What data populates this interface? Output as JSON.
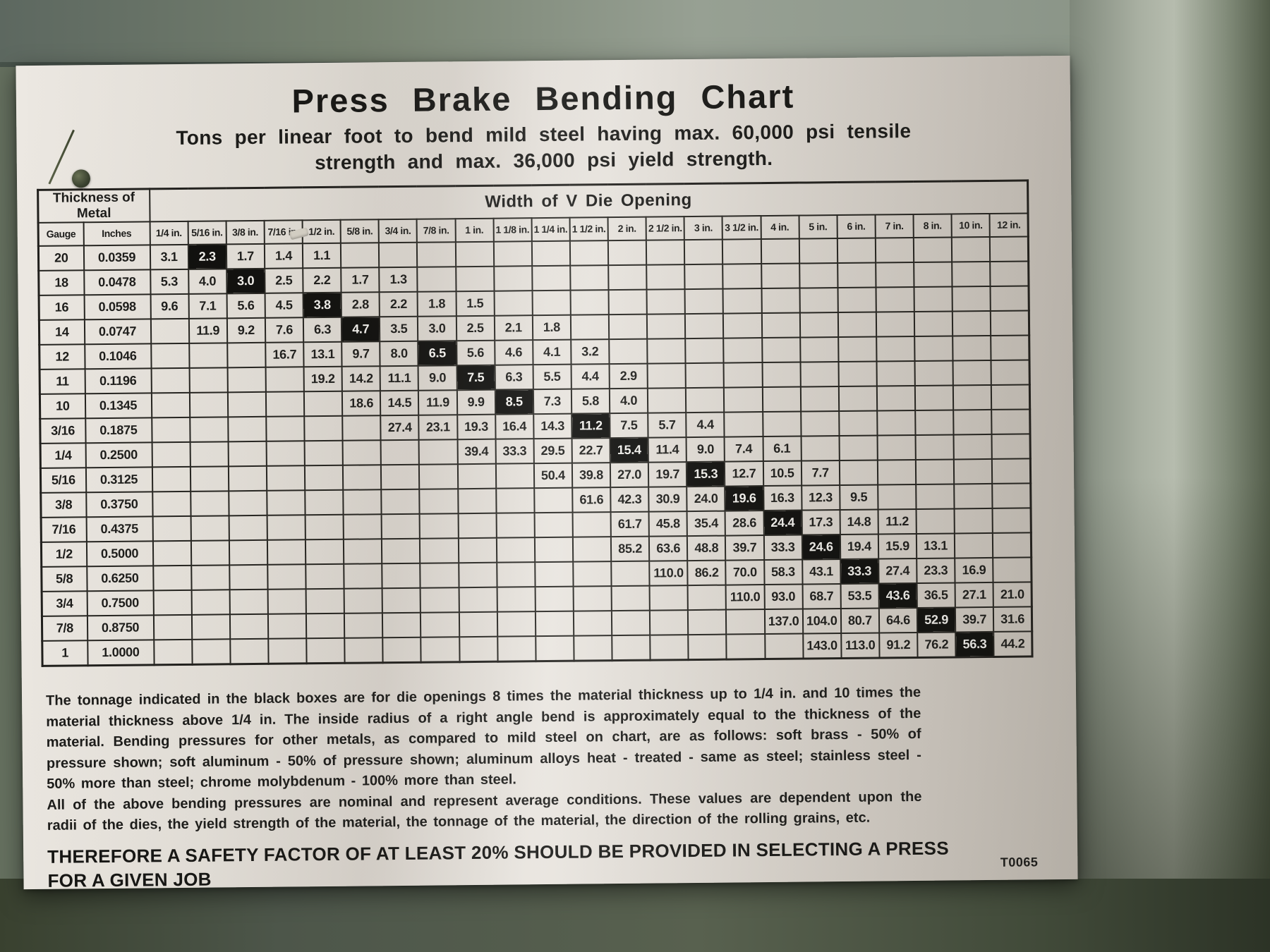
{
  "header": {
    "title": "Press Brake Bending Chart",
    "subtitle_line1": "Tons per linear foot to bend mild steel having max. 60,000 psi tensile",
    "subtitle_line2": "strength and max. 36,000 psi yield strength."
  },
  "chart_data": {
    "type": "table",
    "corner_header": "Thickness of Metal",
    "span_header": "Width of V Die Opening",
    "col1_header": "Gauge",
    "col2_header": "Inches",
    "die_opening_columns": [
      "1/4 in.",
      "5/16 in.",
      "3/8 in.",
      "7/16 in.",
      "1/2 in.",
      "5/8 in.",
      "3/4 in.",
      "7/8 in.",
      "1 in.",
      "1 1/8 in.",
      "1 1/4 in.",
      "1 1/2 in.",
      "2 in.",
      "2 1/2 in.",
      "3 in.",
      "3 1/2 in.",
      "4 in.",
      "5 in.",
      "6 in.",
      "7 in.",
      "8 in.",
      "10 in.",
      "12 in."
    ],
    "black_box_note": "black boxes mark die opening of 8x thickness up to 1/4 in. and 10x above 1/4 in.",
    "rows": [
      {
        "gauge": "20",
        "inches": "0.0359",
        "black_col": 1,
        "values": [
          "3.1",
          "2.3",
          "1.7",
          "1.4",
          "1.1",
          "",
          "",
          "",
          "",
          "",
          "",
          "",
          "",
          "",
          "",
          "",
          "",
          "",
          "",
          "",
          "",
          "",
          ""
        ]
      },
      {
        "gauge": "18",
        "inches": "0.0478",
        "black_col": 2,
        "values": [
          "5.3",
          "4.0",
          "3.0",
          "2.5",
          "2.2",
          "1.7",
          "1.3",
          "",
          "",
          "",
          "",
          "",
          "",
          "",
          "",
          "",
          "",
          "",
          "",
          "",
          "",
          "",
          ""
        ]
      },
      {
        "gauge": "16",
        "inches": "0.0598",
        "black_col": 4,
        "values": [
          "9.6",
          "7.1",
          "5.6",
          "4.5",
          "3.8",
          "2.8",
          "2.2",
          "1.8",
          "1.5",
          "",
          "",
          "",
          "",
          "",
          "",
          "",
          "",
          "",
          "",
          "",
          "",
          "",
          ""
        ]
      },
      {
        "gauge": "14",
        "inches": "0.0747",
        "black_col": 5,
        "values": [
          "",
          "11.9",
          "9.2",
          "7.6",
          "6.3",
          "4.7",
          "3.5",
          "3.0",
          "2.5",
          "2.1",
          "1.8",
          "",
          "",
          "",
          "",
          "",
          "",
          "",
          "",
          "",
          "",
          "",
          ""
        ]
      },
      {
        "gauge": "12",
        "inches": "0.1046",
        "black_col": 7,
        "values": [
          "",
          "",
          "",
          "16.7",
          "13.1",
          "9.7",
          "8.0",
          "6.5",
          "5.6",
          "4.6",
          "4.1",
          "3.2",
          "",
          "",
          "",
          "",
          "",
          "",
          "",
          "",
          "",
          "",
          ""
        ]
      },
      {
        "gauge": "11",
        "inches": "0.1196",
        "black_col": 8,
        "values": [
          "",
          "",
          "",
          "",
          "19.2",
          "14.2",
          "11.1",
          "9.0",
          "7.5",
          "6.3",
          "5.5",
          "4.4",
          "2.9",
          "",
          "",
          "",
          "",
          "",
          "",
          "",
          "",
          "",
          ""
        ]
      },
      {
        "gauge": "10",
        "inches": "0.1345",
        "black_col": 9,
        "values": [
          "",
          "",
          "",
          "",
          "",
          "18.6",
          "14.5",
          "11.9",
          "9.9",
          "8.5",
          "7.3",
          "5.8",
          "4.0",
          "",
          "",
          "",
          "",
          "",
          "",
          "",
          "",
          "",
          ""
        ]
      },
      {
        "gauge": "3/16",
        "inches": "0.1875",
        "black_col": 11,
        "values": [
          "",
          "",
          "",
          "",
          "",
          "",
          "27.4",
          "23.1",
          "19.3",
          "16.4",
          "14.3",
          "11.2",
          "7.5",
          "5.7",
          "4.4",
          "",
          "",
          "",
          "",
          "",
          "",
          "",
          ""
        ]
      },
      {
        "gauge": "1/4",
        "inches": "0.2500",
        "black_col": 12,
        "values": [
          "",
          "",
          "",
          "",
          "",
          "",
          "",
          "",
          "39.4",
          "33.3",
          "29.5",
          "22.7",
          "15.4",
          "11.4",
          "9.0",
          "7.4",
          "6.1",
          "",
          "",
          "",
          "",
          "",
          ""
        ]
      },
      {
        "gauge": "5/16",
        "inches": "0.3125",
        "black_col": 14,
        "values": [
          "",
          "",
          "",
          "",
          "",
          "",
          "",
          "",
          "",
          "",
          "50.4",
          "39.8",
          "27.0",
          "19.7",
          "15.3",
          "12.7",
          "10.5",
          "7.7",
          "",
          "",
          "",
          "",
          ""
        ]
      },
      {
        "gauge": "3/8",
        "inches": "0.3750",
        "black_col": 15,
        "values": [
          "",
          "",
          "",
          "",
          "",
          "",
          "",
          "",
          "",
          "",
          "",
          "61.6",
          "42.3",
          "30.9",
          "24.0",
          "19.6",
          "16.3",
          "12.3",
          "9.5",
          "",
          "",
          "",
          ""
        ]
      },
      {
        "gauge": "7/16",
        "inches": "0.4375",
        "black_col": 16,
        "values": [
          "",
          "",
          "",
          "",
          "",
          "",
          "",
          "",
          "",
          "",
          "",
          "",
          "61.7",
          "45.8",
          "35.4",
          "28.6",
          "24.4",
          "17.3",
          "14.8",
          "11.2",
          "",
          "",
          ""
        ]
      },
      {
        "gauge": "1/2",
        "inches": "0.5000",
        "black_col": 17,
        "values": [
          "",
          "",
          "",
          "",
          "",
          "",
          "",
          "",
          "",
          "",
          "",
          "",
          "85.2",
          "63.6",
          "48.8",
          "39.7",
          "33.3",
          "24.6",
          "19.4",
          "15.9",
          "13.1",
          "",
          ""
        ]
      },
      {
        "gauge": "5/8",
        "inches": "0.6250",
        "black_col": 18,
        "values": [
          "",
          "",
          "",
          "",
          "",
          "",
          "",
          "",
          "",
          "",
          "",
          "",
          "",
          "110.0",
          "86.2",
          "70.0",
          "58.3",
          "43.1",
          "33.3",
          "27.4",
          "23.3",
          "16.9",
          ""
        ]
      },
      {
        "gauge": "3/4",
        "inches": "0.7500",
        "black_col": 19,
        "values": [
          "",
          "",
          "",
          "",
          "",
          "",
          "",
          "",
          "",
          "",
          "",
          "",
          "",
          "",
          "",
          "110.0",
          "93.0",
          "68.7",
          "53.5",
          "43.6",
          "36.5",
          "27.1",
          "21.0"
        ]
      },
      {
        "gauge": "7/8",
        "inches": "0.8750",
        "black_col": 20,
        "values": [
          "",
          "",
          "",
          "",
          "",
          "",
          "",
          "",
          "",
          "",
          "",
          "",
          "",
          "",
          "",
          "",
          "137.0",
          "104.0",
          "80.7",
          "64.6",
          "52.9",
          "39.7",
          "31.6"
        ]
      },
      {
        "gauge": "1",
        "inches": "1.0000",
        "black_col": 21,
        "values": [
          "",
          "",
          "",
          "",
          "",
          "",
          "",
          "",
          "",
          "",
          "",
          "",
          "",
          "",
          "",
          "",
          "",
          "143.0",
          "113.0",
          "91.2",
          "76.2",
          "56.3",
          "44.2"
        ]
      }
    ]
  },
  "notes": {
    "para1": "The tonnage indicated in the black boxes are for die openings 8 times the material thickness up to 1/4 in. and 10 times the material thickness above 1/4 in. The inside radius of a right angle bend is approximately equal to the thickness of the material. Bending pressures for other metals, as compared to mild steel on chart, are as follows: soft brass - 50% of pressure shown; soft aluminum - 50% of pressure shown; aluminum alloys heat - treated - same as steel; stainless steel - 50% more than steel; chrome molybdenum - 100% more than steel.",
    "para2": "All of the above bending pressures are nominal and represent average conditions. These values are dependent upon the radii of the dies, the yield strength of the material, the tonnage of the material, the direction of the rolling grains, etc.",
    "safety": "THEREFORE A SAFETY FACTOR OF AT LEAST 20% SHOULD BE PROVIDED IN SELECTING A PRESS FOR A GIVEN JOB",
    "code": "T0065"
  },
  "colors": {
    "paper": "#e8e4dd",
    "ink": "#1b1b19",
    "black_box": "#0e0e0c",
    "metal_base": "#65705f",
    "metal_dark": "#39412f"
  }
}
